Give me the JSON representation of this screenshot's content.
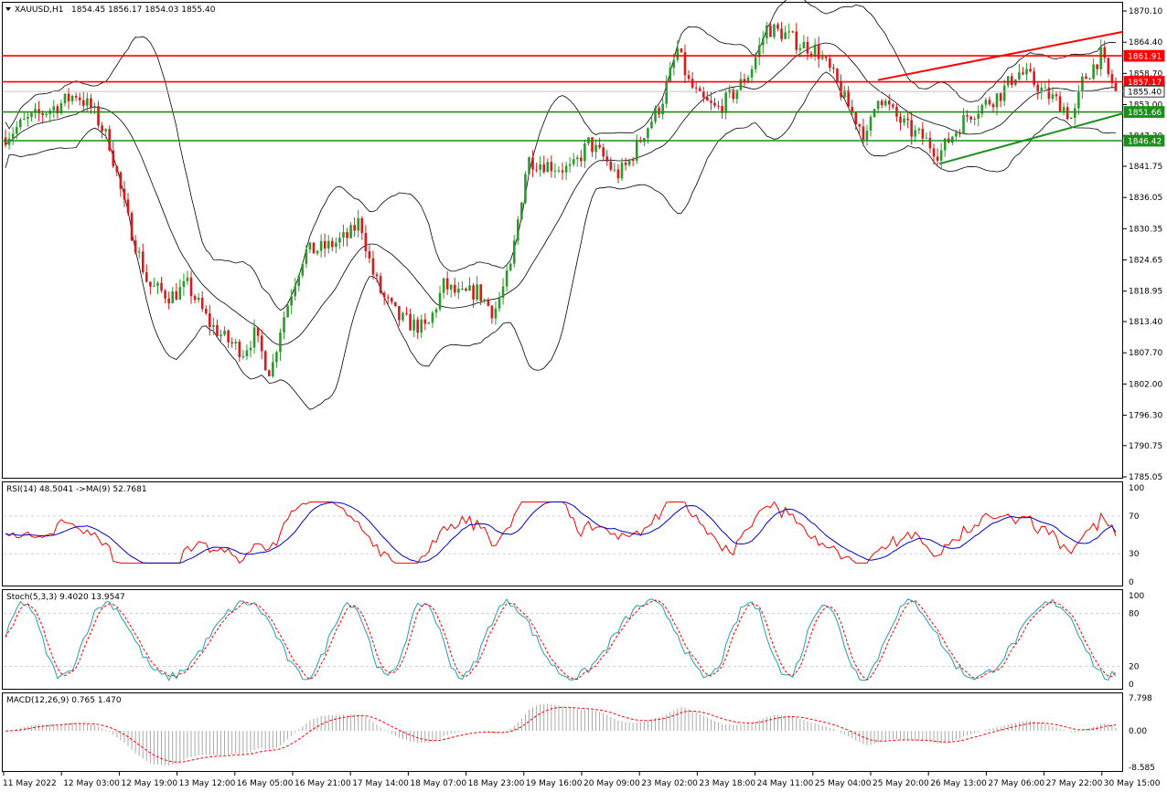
{
  "header": {
    "symbol": "XAUUSD,H1",
    "ohlc": "1854.45 1856.17 1854.03 1855.40"
  },
  "colors": {
    "bull": "#2a9a2a",
    "bear": "#d81a1a",
    "bands": "#000000",
    "resistance": "#ff0000",
    "support": "#1a8f1a",
    "price_label_bg": "#ffffff",
    "rsi": "#ff0000",
    "rsi_ma": "#0000c8",
    "stoch_main": "#20a0b0",
    "stoch_signal": "#ff0000",
    "macd_hist": "#a0a0a0",
    "macd_signal": "#ff0000"
  },
  "chart_data": {
    "type": "candlestick",
    "timeframe": "H1",
    "y_ticks": [
      "1870.10",
      "1864.40",
      "1858.70",
      "1853.00",
      "1847.30",
      "1841.75",
      "1836.05",
      "1830.35",
      "1824.65",
      "1818.95",
      "1813.40",
      "1807.70",
      "1802.00",
      "1796.30",
      "1790.75",
      "1785.05"
    ],
    "ylim": [
      1785.05,
      1870.1
    ],
    "x_tick_labels": [
      "11 May 2022",
      "12 May 03:00",
      "12 May 19:00",
      "13 May 12:00",
      "16 May 05:00",
      "16 May 21:00",
      "17 May 14:00",
      "18 May 07:00",
      "18 May 23:00",
      "19 May 16:00",
      "20 May 09:00",
      "23 May 02:00",
      "23 May 18:00",
      "24 May 11:00",
      "25 May 04:00",
      "25 May 20:00",
      "26 May 13:00",
      "27 May 06:00",
      "27 May 22:00",
      "30 May 15:00"
    ],
    "horizontal_levels": [
      {
        "label": "1861.91",
        "value": 1861.91,
        "kind": "resistance"
      },
      {
        "label": "1857.17",
        "value": 1857.17,
        "kind": "resistance"
      },
      {
        "label": "1855.40",
        "value": 1855.4,
        "kind": "current"
      },
      {
        "label": "1851.66",
        "value": 1851.66,
        "kind": "support"
      },
      {
        "label": "1846.42",
        "value": 1846.42,
        "kind": "support"
      }
    ],
    "trendlines": [
      {
        "kind": "resistance",
        "from": [
          0.785,
          1857.5
        ],
        "to": [
          1.0,
          1866.3
        ]
      },
      {
        "kind": "support",
        "from": [
          0.84,
          1842.2
        ],
        "to": [
          1.0,
          1851.4
        ]
      }
    ],
    "price_anchors": [
      [
        0.0,
        1847
      ],
      [
        0.02,
        1850
      ],
      [
        0.05,
        1853
      ],
      [
        0.065,
        1855
      ],
      [
        0.08,
        1852
      ],
      [
        0.095,
        1846
      ],
      [
        0.11,
        1833
      ],
      [
        0.13,
        1820
      ],
      [
        0.15,
        1818
      ],
      [
        0.165,
        1820
      ],
      [
        0.185,
        1813
      ],
      [
        0.2,
        1810
      ],
      [
        0.215,
        1808
      ],
      [
        0.225,
        1811
      ],
      [
        0.235,
        1806
      ],
      [
        0.24,
        1804
      ],
      [
        0.248,
        1812
      ],
      [
        0.26,
        1820
      ],
      [
        0.27,
        1826
      ],
      [
        0.29,
        1827
      ],
      [
        0.31,
        1829
      ],
      [
        0.32,
        1832
      ],
      [
        0.33,
        1823
      ],
      [
        0.34,
        1818
      ],
      [
        0.355,
        1814
      ],
      [
        0.365,
        1813
      ],
      [
        0.38,
        1812
      ],
      [
        0.395,
        1820
      ],
      [
        0.41,
        1818
      ],
      [
        0.425,
        1819
      ],
      [
        0.44,
        1815
      ],
      [
        0.455,
        1823
      ],
      [
        0.47,
        1843
      ],
      [
        0.49,
        1842
      ],
      [
        0.51,
        1841
      ],
      [
        0.525,
        1846
      ],
      [
        0.54,
        1843
      ],
      [
        0.55,
        1840
      ],
      [
        0.56,
        1842
      ],
      [
        0.575,
        1848
      ],
      [
        0.59,
        1853
      ],
      [
        0.605,
        1863
      ],
      [
        0.615,
        1857
      ],
      [
        0.625,
        1854
      ],
      [
        0.64,
        1852
      ],
      [
        0.655,
        1855
      ],
      [
        0.67,
        1859
      ],
      [
        0.685,
        1867
      ],
      [
        0.7,
        1866
      ],
      [
        0.715,
        1864
      ],
      [
        0.73,
        1863
      ],
      [
        0.745,
        1858
      ],
      [
        0.76,
        1852
      ],
      [
        0.775,
        1847
      ],
      [
        0.785,
        1855
      ],
      [
        0.8,
        1851
      ],
      [
        0.815,
        1848
      ],
      [
        0.825,
        1847
      ],
      [
        0.84,
        1844
      ],
      [
        0.85,
        1847
      ],
      [
        0.865,
        1851
      ],
      [
        0.88,
        1853
      ],
      [
        0.895,
        1855
      ],
      [
        0.91,
        1859
      ],
      [
        0.92,
        1858
      ],
      [
        0.935,
        1855
      ],
      [
        0.95,
        1853
      ],
      [
        0.96,
        1850
      ],
      [
        0.968,
        1857
      ],
      [
        0.978,
        1860
      ],
      [
        0.985,
        1862
      ],
      [
        0.992,
        1858
      ],
      [
        1.0,
        1855.4
      ]
    ],
    "indicators": {
      "rsi": {
        "label": "RSI(14) 48.5041  ->MA(9) 52.7681",
        "value": 48.5041,
        "ma": 52.7681,
        "levels": [
          "100",
          "70",
          "30",
          "0"
        ],
        "ylim": [
          0,
          100
        ]
      },
      "stochastic": {
        "label": "Stoch(5,3,3) 9.4020 13.9547",
        "main": 9.402,
        "signal": 13.9547,
        "levels": [
          "100",
          "80",
          "20",
          "0"
        ],
        "ylim": [
          0,
          100
        ]
      },
      "macd": {
        "label": "MACD(12,26,9) 0.765 1.470",
        "main": 0.765,
        "signal": 1.47,
        "levels": [
          "7.798",
          "0.00",
          "-8.585"
        ],
        "ylim": [
          -8.585,
          7.798
        ]
      }
    }
  }
}
